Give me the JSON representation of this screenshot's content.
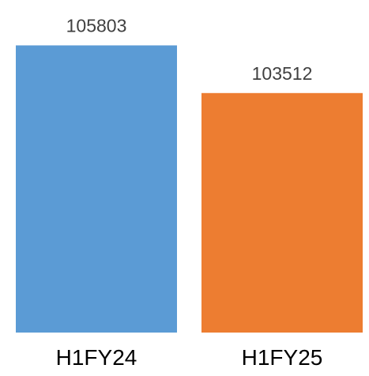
{
  "chart_data": {
    "type": "bar",
    "categories": [
      "H1FY24",
      "H1FY25"
    ],
    "values": [
      105803,
      103512
    ],
    "data_labels": [
      "105803",
      "103512"
    ],
    "colors": [
      "#5B9BD5",
      "#ED7D31"
    ],
    "title": "",
    "xlabel": "",
    "ylabel": "",
    "ylim": [
      92000,
      106200
    ],
    "grid": false,
    "legend": "none"
  }
}
